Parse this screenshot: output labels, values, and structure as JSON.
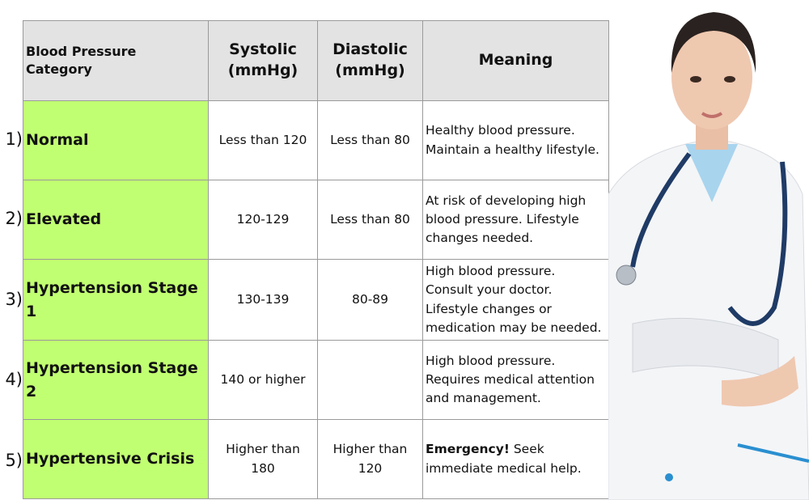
{
  "headers": {
    "category": "Blood Pressure Category",
    "systolic": "Systolic (mmHg)",
    "diastolic": "Diastolic (mmHg)",
    "meaning": "Meaning"
  },
  "rows": [
    {
      "num": "1)",
      "category": "Normal",
      "systolic": "Less than 120",
      "diastolic": "Less than 80",
      "meaning_bold": "",
      "meaning": "Healthy blood pressure. Maintain a healthy lifestyle."
    },
    {
      "num": "2)",
      "category": "Elevated",
      "systolic": "120-129",
      "diastolic": "Less than 80",
      "meaning_bold": "",
      "meaning": "At risk of developing high blood pressure. Lifestyle changes needed."
    },
    {
      "num": "3)",
      "category": "Hypertension Stage 1",
      "systolic": "130-139",
      "diastolic": "80-89",
      "meaning_bold": "",
      "meaning": "High blood pressure. Consult your doctor. Lifestyle changes or medication may be needed."
    },
    {
      "num": "4)",
      "category": "Hypertension Stage 2",
      "systolic": "140 or higher",
      "diastolic": "",
      "meaning_bold": "",
      "meaning": "High blood pressure. Requires medical attention and management."
    },
    {
      "num": "5)",
      "category": "Hypertensive Crisis",
      "systolic": "Higher than 180",
      "diastolic": "Higher than 120",
      "meaning_bold": "Emergency!",
      "meaning": " Seek immediate medical help."
    }
  ],
  "colors": {
    "header": "#e3e3e3",
    "category": "#c1ff72"
  }
}
